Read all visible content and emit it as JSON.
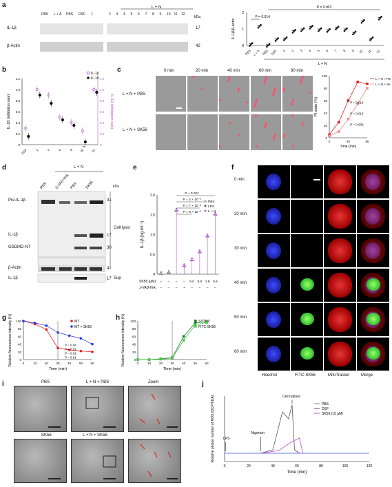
{
  "panel_labels": [
    "a",
    "b",
    "c",
    "d",
    "e",
    "f",
    "g",
    "h",
    "i",
    "j"
  ],
  "panel_a": {
    "header_group": "L + N",
    "lanes_left": [
      "PBS",
      "L + A",
      "PBS",
      "DSF",
      "1"
    ],
    "lanes_right": [
      "2",
      "3",
      "4",
      "5",
      "6",
      "7",
      "8",
      "9",
      "10",
      "11",
      "12"
    ],
    "rows": [
      "IL-1β",
      "β-Actin"
    ],
    "kda_label": "kDa",
    "kda": [
      "17",
      "42"
    ],
    "chart": {
      "ylabel": "IL-1β/β-actin",
      "yticks": [
        "0",
        "1",
        "2"
      ],
      "categories": [
        "PBS",
        "L + A",
        "PBS",
        "DSF",
        "1",
        "2",
        "3",
        "4",
        "5",
        "6",
        "7",
        "8",
        "9",
        "10",
        "11",
        "12"
      ],
      "group_label": "L + N",
      "pvals": [
        "P = 0.014",
        "P = 0.003"
      ]
    }
  },
  "chart_data": [
    {
      "type": "bar",
      "title": "",
      "ylabel": "IL-1β/β-actin",
      "ylim": [
        0,
        2
      ],
      "categories": [
        "PBS",
        "L + A",
        "PBS",
        "DSF",
        "1",
        "2",
        "3",
        "4",
        "5",
        "6",
        "7",
        "8",
        "9",
        "10",
        "11",
        "12"
      ],
      "values": [
        0.1,
        1.2,
        0.05,
        0.4,
        0.45,
        0.9,
        1.0,
        1.15,
        1.0,
        0.95,
        1.1,
        1.0,
        0.8,
        1.5,
        0.45,
        1.7
      ]
    },
    {
      "type": "scatter",
      "xlabel": "",
      "ylabel": "IL-18 (inhibition rate)",
      "y2label": "IL-1β (inhibition rate)",
      "categories": [
        "DSF",
        "2",
        "4",
        "6",
        "8",
        "10",
        "12"
      ],
      "ylim": [
        0,
        1.2
      ],
      "yticks": [
        "0",
        "0.2",
        "0.4",
        "0.6",
        "0.8",
        "1.0",
        "1.2"
      ],
      "series": [
        {
          "name": "IL-1β",
          "values": [
            0.3,
            1.0,
            0.9,
            0.5,
            0.4,
            0.25,
            1.0
          ]
        },
        {
          "name": "IL-18",
          "values": [
            0.15,
            0.9,
            0.75,
            0.45,
            0.35,
            0.05,
            0.95
          ]
        }
      ],
      "annotation": "**"
    },
    {
      "type": "line",
      "xlabel": "Time (min)",
      "ylabel": "PI stain (%)",
      "x": [
        0,
        20,
        40,
        60,
        80
      ],
      "ylim": [
        0,
        100
      ],
      "yticks": [
        "0",
        "20",
        "40",
        "60",
        "80",
        "100"
      ],
      "xticks": [
        "0",
        "40",
        "80"
      ],
      "series": [
        {
          "name": "L + N + PBS",
          "values": [
            5,
            25,
            60,
            90,
            87
          ]
        },
        {
          "name": "L + N + SK56",
          "values": [
            3,
            10,
            30,
            55,
            80
          ]
        }
      ],
      "pvals": [
        "P = 0.016",
        "P = 0.012",
        "P = 0.009"
      ]
    },
    {
      "type": "bar",
      "ylabel": "IL-1β (ng ml⁻¹)",
      "ylim": [
        0,
        2.0
      ],
      "yticks": [
        "0",
        "0.5",
        "1.0",
        "1.5",
        "2.0"
      ],
      "categories": [
        "1",
        "2",
        "3",
        "4",
        "5",
        "6",
        "7",
        "8"
      ],
      "values": [
        0.05,
        0.08,
        1.65,
        0.25,
        0.4,
        0.6,
        1.0,
        1.55
      ],
      "legend": [
        "PBS",
        "LPS",
        "L + N"
      ],
      "pvals": [
        "P = 0.001",
        "P = 4 × 10⁻³",
        "P = 7 × 10⁻³",
        "P = 8 × 10⁻³"
      ]
    },
    {
      "type": "line",
      "xlabel": "Time (min)",
      "ylabel": "Relative fluorescence intensity (%)",
      "x": [
        0,
        10,
        20,
        30,
        40,
        50,
        60
      ],
      "ylim": [
        0,
        100
      ],
      "series": [
        {
          "name": "MT",
          "values": [
            100,
            92,
            78,
            30,
            25,
            22,
            20
          ]
        },
        {
          "name": "MT + SK56",
          "values": [
            100,
            95,
            88,
            70,
            62,
            55,
            40
          ]
        }
      ],
      "pvals": [
        "P = 0.04",
        "P = 0.02",
        "P = 0.01",
        "P = 0.01"
      ]
    },
    {
      "type": "line",
      "xlabel": "Time (min)",
      "ylabel": "Relative fluorescence intensity (%)",
      "x": [
        0,
        10,
        20,
        30,
        40,
        50,
        60
      ],
      "ylim": [
        0,
        100
      ],
      "series": [
        {
          "name": "SYTOX",
          "values": [
            0,
            0,
            2,
            5,
            60,
            95,
            98
          ]
        },
        {
          "name": "FITC-SK56",
          "values": [
            0,
            0,
            1,
            4,
            50,
            90,
            96
          ]
        }
      ]
    },
    {
      "type": "line",
      "xlabel": "Time (min)",
      "ylabel": "Relative photon number of ROS (DCFH-DA)",
      "x": [
        0,
        20,
        40,
        60,
        80,
        100,
        120
      ],
      "series": [
        {
          "name": "PBS",
          "values": [
            0.1,
            0.1,
            0.12,
            0.1,
            0.1,
            0.1,
            0.1
          ]
        },
        {
          "name": "DSF",
          "values": [
            0.1,
            0.1,
            0.15,
            1.0,
            0.1,
            0.1,
            0.1
          ]
        },
        {
          "name": "SK56 (15 μM)",
          "values": [
            0.1,
            0.1,
            0.12,
            0.3,
            0.1,
            0.1,
            0.1
          ]
        }
      ],
      "annotations": [
        "LPS",
        "Nigericin",
        "Cell rupture"
      ]
    }
  ],
  "panel_b": {
    "legend": [
      "IL-1β",
      "IL-18"
    ],
    "ylabel_left": "IL-18 (inhibition rate)",
    "ylabel_right": "IL-1β (inhibition rate)",
    "xticks": [
      "DSF",
      "2",
      "4",
      "6",
      "8",
      "10",
      "12"
    ],
    "sig": "**"
  },
  "panel_c": {
    "times": [
      "0 min",
      "20 min",
      "40 min",
      "60 min",
      "80 min"
    ],
    "rows": [
      "L + N + PBS",
      "L + N + SK56"
    ],
    "chart": {
      "ylabel": "PI stain (%)",
      "xlabel": "Time (min)",
      "legend": [
        "L + N + PBS",
        "L + N + SK56"
      ],
      "pvals": [
        "P = 0.016",
        "P = 0.012",
        "P = 0.009"
      ],
      "xticks": [
        "0",
        "40",
        "80"
      ],
      "yticks": [
        "0",
        "20",
        "40",
        "60",
        "80",
        "100"
      ]
    }
  },
  "panel_d": {
    "header_group": "L + N",
    "lanes": [
      "PBS",
      "Z-VAD-fmk",
      "PBS",
      "SK56"
    ],
    "kda_label": "kDa",
    "rows": [
      "Pre-IL-1β",
      "IL-1β",
      "GSDMD-NT",
      "β-Actin",
      "IL-1β"
    ],
    "kda": [
      "31",
      "17",
      "30",
      "42",
      "17"
    ],
    "groups": [
      "Cell lysis",
      "Sup"
    ]
  },
  "panel_e": {
    "ylabel": "IL-1β (ng ml⁻¹)",
    "legend": [
      "PBS",
      "LPS",
      "L + N"
    ],
    "pvals": [
      "P = 0.001",
      "P = 4 × 10⁻³",
      "P = 7 × 10⁻³",
      "P = 8 × 10⁻³"
    ],
    "row1_label": "SK56 (μM)",
    "row1": [
      "–",
      "–",
      "–",
      "–",
      "5.0",
      "5.0",
      "1.6",
      "0.6"
    ],
    "row2_label": "z-VAD-fmk",
    "row2": [
      "–",
      "–",
      "–",
      "+",
      "–",
      "–",
      "–",
      "–"
    ]
  },
  "panel_f": {
    "times": [
      "0 min",
      "20 min",
      "30 min",
      "40 min",
      "50 min",
      "60 min"
    ],
    "columns": [
      "Hoechst",
      "FITC-SK56",
      "MitoTracker",
      "Merge"
    ]
  },
  "panel_g": {
    "legend": [
      "MT",
      "MT + SK56"
    ],
    "xlabel": "Time (min)",
    "ylabel": "Relative fluorescence intensity (%)",
    "pvals": [
      "P = 0.04",
      "P = 0.02",
      "P = 0.01",
      "P = 0.01"
    ],
    "xticks": [
      "0",
      "10",
      "20",
      "30",
      "40",
      "50",
      "60"
    ],
    "yticks": [
      "0",
      "20",
      "40",
      "60",
      "80",
      "100"
    ]
  },
  "panel_h": {
    "legend": [
      "SYTOX",
      "FITC-SK56"
    ],
    "xlabel": "Time (min)",
    "ylabel": "Relative fluorescence intensity (%)",
    "xticks": [
      "0",
      "10",
      "20",
      "30",
      "40",
      "50",
      "60"
    ],
    "yticks": [
      "0",
      "20",
      "40",
      "60",
      "80",
      "100"
    ]
  },
  "panel_i": {
    "labels": [
      "PBS",
      "L + N + PBS",
      "Zoom",
      "SK56",
      "L + N + SK56"
    ]
  },
  "panel_j": {
    "legend": [
      "PBS",
      "DSF",
      "SK56 (15 μM)"
    ],
    "annotations": [
      "LPS",
      "Nigericin",
      "Cell rupture"
    ],
    "xlabel": "Time (min)",
    "ylabel": "Relative photon number of ROS (DCFH-DA)",
    "xticks": [
      "0",
      "20",
      "40",
      "60",
      "80",
      "100",
      "120"
    ]
  },
  "colors": {
    "purple": "#b05ec9",
    "black": "#111111",
    "red": "#e02020",
    "blue": "#2a3ad6",
    "green": "#2da82d",
    "pink": "#f08a8a",
    "gray": "#888888"
  }
}
